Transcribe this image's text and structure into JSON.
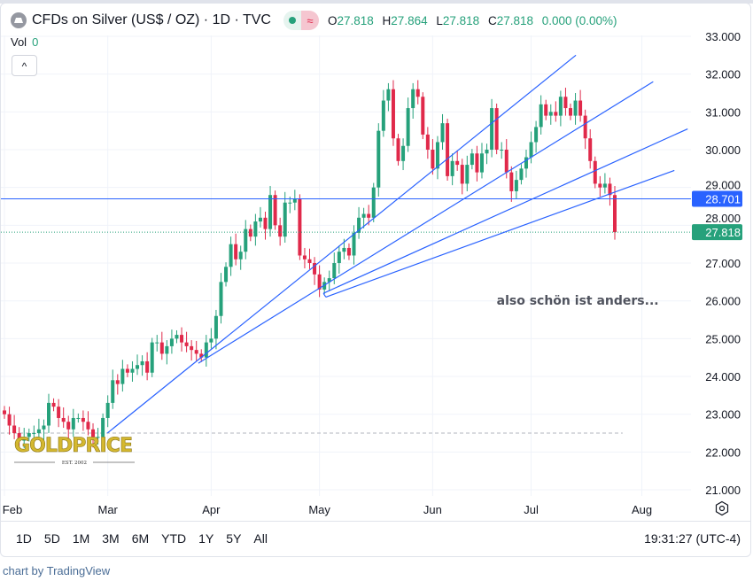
{
  "header": {
    "title": "CFDs on Silver (US$ / OZ) · 1D · TVC",
    "market_status_icon": "green-dot",
    "delay_icon": "approx-icon",
    "ohlc": {
      "o_label": "O",
      "o": "27.818",
      "h_label": "H",
      "h": "27.864",
      "l_label": "L",
      "l": "27.818",
      "c_label": "C",
      "c": "27.818",
      "change": "0.000 (0.00%)"
    },
    "vol_label": "Vol",
    "vol_value": "0",
    "collapse_glyph": "^"
  },
  "toolbar": {
    "ranges": [
      "1D",
      "5D",
      "1M",
      "3M",
      "6M",
      "YTD",
      "1Y",
      "5Y",
      "All"
    ],
    "clock": "19:31:27 (UTC-4)"
  },
  "footer": {
    "credit": "chart by TradingView"
  },
  "colors": {
    "up": "#26a17b",
    "down": "#e0294a",
    "line": "#2962ff",
    "grid": "#f0f3fa"
  },
  "chart_data": {
    "type": "candlestick",
    "title": "CFDs on Silver (US$ / OZ) · 1D · TVC",
    "ylim": [
      20.6,
      33.2
    ],
    "y_ticks": [
      "33.000",
      "32.000",
      "31.000",
      "30.000",
      "29.000",
      "28.000",
      "27.000",
      "26.000",
      "25.000",
      "24.000",
      "23.000",
      "22.000",
      "21.000"
    ],
    "x_ticks": [
      {
        "label": "Feb",
        "bar": 0
      },
      {
        "label": "Mar",
        "bar": 21
      },
      {
        "label": "Apr",
        "bar": 42
      },
      {
        "label": "May",
        "bar": 64
      },
      {
        "label": "Jun",
        "bar": 87
      },
      {
        "label": "Jul",
        "bar": 107
      },
      {
        "label": "Aug",
        "bar": 129.5
      }
    ],
    "closes": [
      23.0,
      22.7,
      22.5,
      22.3,
      22.4,
      22.5,
      22.5,
      22.6,
      22.7,
      23.3,
      23.2,
      22.9,
      22.8,
      22.6,
      22.9,
      22.9,
      22.8,
      22.6,
      22.4,
      22.4,
      22.9,
      23.3,
      23.9,
      23.8,
      24.2,
      24.1,
      24.2,
      24.3,
      24.4,
      24.1,
      24.9,
      24.9,
      24.6,
      24.8,
      25.0,
      25.1,
      24.9,
      24.8,
      24.7,
      24.6,
      24.5,
      24.9,
      25.0,
      25.6,
      26.5,
      26.9,
      27.5,
      27.1,
      27.3,
      27.9,
      27.7,
      28.1,
      28.2,
      27.9,
      28.8,
      28.0,
      27.7,
      28.6,
      28.6,
      28.7,
      27.2,
      27.1,
      27.0,
      26.7,
      26.3,
      26.5,
      26.6,
      27.0,
      27.3,
      27.4,
      27.2,
      27.8,
      28.2,
      28.3,
      28.2,
      29.0,
      30.5,
      31.3,
      31.6,
      30.3,
      29.7,
      30.1,
      31.1,
      31.6,
      31.4,
      30.4,
      30.0,
      29.5,
      30.2,
      30.7,
      29.3,
      29.7,
      29.6,
      29.1,
      29.6,
      29.9,
      29.4,
      29.9,
      30.0,
      31.1,
      30.0,
      30.0,
      29.4,
      28.9,
      29.2,
      29.5,
      29.8,
      30.2,
      30.6,
      31.2,
      30.9,
      31.0,
      30.9,
      31.4,
      31.1,
      30.9,
      31.3,
      30.9,
      30.3,
      29.7,
      29.1,
      29.0,
      29.1,
      28.8,
      27.818
    ],
    "price_lines": [
      {
        "label": "28.701",
        "price": 28.701,
        "style": "solid",
        "color": "#2962ff"
      },
      {
        "label": "27.818",
        "price": 27.818,
        "style": "dotted",
        "color": "#26a17b"
      }
    ],
    "baseline": {
      "price": 22.5,
      "style": "dashed",
      "end_bar": 125.6
    },
    "trend_lines": [
      {
        "from": [
          20.9,
          22.5
        ],
        "to": [
          116.1,
          32.5
        ]
      },
      {
        "from": [
          39.4,
          24.35
        ],
        "to": [
          131.8,
          31.8
        ]
      },
      {
        "from": [
          64.8,
          26.2
        ],
        "to": [
          138.8,
          30.55
        ]
      },
      {
        "from": [
          65.3,
          26.1
        ],
        "to": [
          136.1,
          29.45
        ]
      },
      {
        "from": [
          64.8,
          26.2
        ],
        "to": [
          65.3,
          26.1
        ]
      }
    ],
    "annotation": {
      "text": "also schön ist anders...",
      "bar": 100,
      "price": 25.9
    },
    "watermark": {
      "text": "GOLDPRICE",
      "sub": "EST. 2002"
    }
  }
}
